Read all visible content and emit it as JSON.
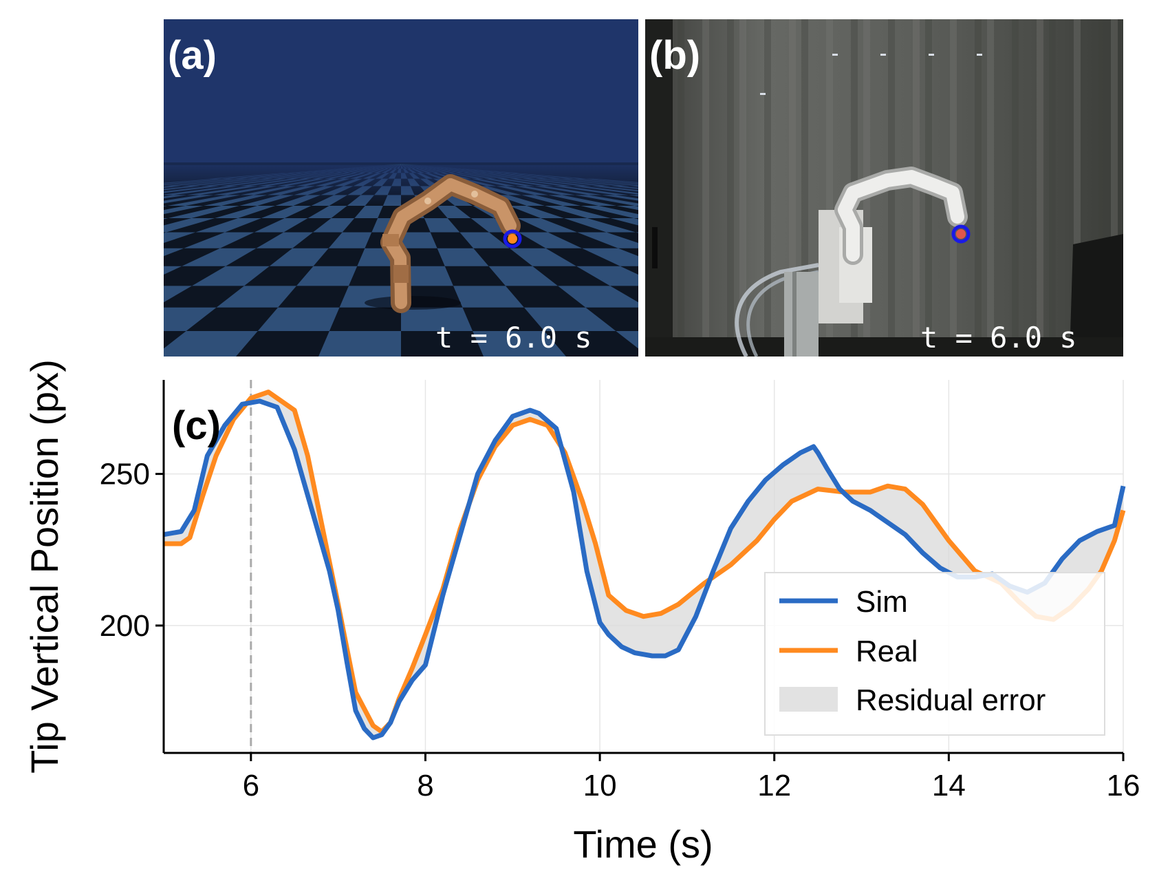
{
  "panels": {
    "a": {
      "label": "(a)",
      "time_text": "t = 6.0 s"
    },
    "b": {
      "label": "(b)",
      "time_text": "t = 6.0 s"
    }
  },
  "colors": {
    "sim": "#2a6bc4",
    "real": "#ff8a1f",
    "residual": "#d9d9d9",
    "sky": "#1f356a",
    "floor_dark": "#0d1522",
    "floor_light": "#2f4f78",
    "robot_sim": "#b07a4e",
    "robot_real": "#e6e6e6",
    "curtain": "#5a5c58",
    "marker_ring": "#1a1ae6"
  },
  "chart_data": {
    "type": "line",
    "panel_label": "(c)",
    "title": "",
    "xlabel": "Time (s)",
    "ylabel": "Tip Vertical Position (px)",
    "xlim": [
      5,
      16
    ],
    "ylim": [
      158,
      281
    ],
    "xticks": [
      6,
      8,
      10,
      12,
      14,
      16
    ],
    "yticks": [
      200,
      250
    ],
    "grid": true,
    "legend_position": "lower-right",
    "vline": {
      "x": 6,
      "style": "dashed"
    },
    "series": [
      {
        "name": "Sim",
        "x": [
          5.0,
          5.2,
          5.35,
          5.5,
          5.7,
          5.9,
          6.1,
          6.3,
          6.5,
          6.7,
          6.9,
          7.0,
          7.1,
          7.2,
          7.3,
          7.4,
          7.5,
          7.6,
          7.7,
          7.85,
          8.0,
          8.2,
          8.4,
          8.6,
          8.8,
          9.0,
          9.2,
          9.3,
          9.5,
          9.7,
          9.85,
          10.0,
          10.1,
          10.25,
          10.4,
          10.6,
          10.75,
          10.9,
          11.1,
          11.3,
          11.5,
          11.7,
          11.9,
          12.1,
          12.3,
          12.45,
          12.5,
          12.6,
          12.75,
          12.9,
          13.1,
          13.3,
          13.5,
          13.7,
          13.9,
          14.1,
          14.3,
          14.5,
          14.7,
          14.9,
          15.1,
          15.3,
          15.5,
          15.7,
          15.9,
          16.0
        ],
        "values": [
          230,
          231,
          238,
          256,
          266,
          273,
          274,
          272,
          258,
          238,
          218,
          205,
          188,
          172,
          166,
          163,
          164,
          168,
          175,
          182,
          187,
          210,
          230,
          250,
          261,
          269,
          271,
          270,
          265,
          244,
          218,
          201,
          197,
          193,
          191,
          190,
          190,
          192,
          203,
          218,
          232,
          241,
          248,
          253,
          257,
          259,
          257,
          252,
          245,
          241,
          238,
          234,
          230,
          224,
          219,
          216,
          216,
          217,
          213,
          211,
          214,
          222,
          228,
          231,
          233,
          246
        ]
      },
      {
        "name": "Real",
        "x": [
          5.0,
          5.2,
          5.3,
          5.45,
          5.6,
          5.8,
          6.0,
          6.2,
          6.5,
          6.65,
          6.8,
          7.0,
          7.2,
          7.4,
          7.5,
          7.6,
          7.7,
          7.85,
          8.0,
          8.2,
          8.4,
          8.6,
          8.8,
          9.0,
          9.2,
          9.4,
          9.6,
          9.8,
          9.95,
          10.1,
          10.3,
          10.5,
          10.7,
          10.9,
          11.2,
          11.5,
          11.8,
          12.0,
          12.2,
          12.5,
          12.8,
          13.1,
          13.3,
          13.5,
          13.7,
          14.0,
          14.3,
          14.6,
          14.8,
          15.0,
          15.2,
          15.4,
          15.6,
          15.75,
          15.9,
          16.0
        ],
        "values": [
          227,
          227,
          229,
          243,
          256,
          268,
          275,
          277,
          271,
          256,
          235,
          207,
          178,
          167,
          165,
          168,
          176,
          186,
          197,
          212,
          232,
          248,
          259,
          266,
          268,
          266,
          257,
          241,
          227,
          210,
          205,
          203,
          204,
          207,
          214,
          220,
          228,
          235,
          241,
          245,
          244,
          244,
          246,
          245,
          240,
          228,
          218,
          214,
          208,
          203,
          202,
          206,
          212,
          218,
          228,
          238
        ]
      }
    ],
    "residual_label": "Residual error"
  }
}
